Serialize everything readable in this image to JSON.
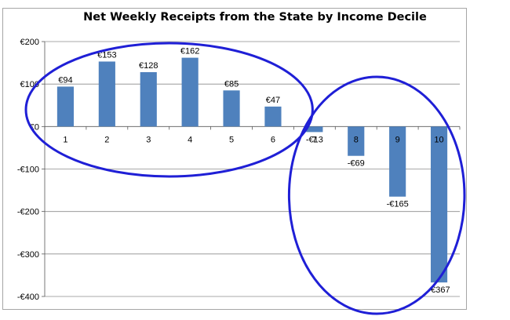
{
  "chart_data": {
    "type": "bar",
    "title": "Net Weekly Receipts from the State by Income Decile",
    "xlabel": "",
    "ylabel": "",
    "categories": [
      "1",
      "2",
      "3",
      "4",
      "5",
      "6",
      "7",
      "8",
      "9",
      "10"
    ],
    "values": [
      94,
      153,
      128,
      162,
      85,
      47,
      -13,
      -69,
      -165,
      -367
    ],
    "data_labels": [
      "€94",
      "€153",
      "€128",
      "€162",
      "€85",
      "€47",
      "-€13",
      "-€69",
      "-€165",
      "-€367"
    ],
    "ylim": [
      -400,
      200
    ],
    "y_ticks": [
      200,
      100,
      0,
      -100,
      -200,
      -300,
      -400
    ],
    "y_tick_labels": [
      "€200",
      "€100",
      "€0",
      "-€100",
      "-€200",
      "-€300",
      "-€400"
    ],
    "grid": true,
    "legend": "none",
    "bar_color": "#4f81bd",
    "annotations": [
      {
        "shape": "ellipse",
        "color": "#1f1fd6",
        "encloses": [
          "1",
          "2",
          "3",
          "4",
          "5",
          "6"
        ]
      },
      {
        "shape": "ellipse",
        "color": "#1f1fd6",
        "encloses": [
          "7",
          "8",
          "9",
          "10"
        ]
      }
    ]
  }
}
